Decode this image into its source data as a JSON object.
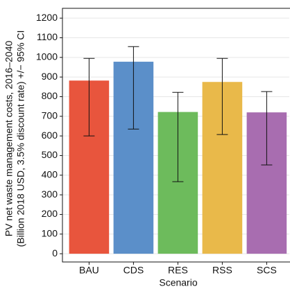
{
  "chart_data": {
    "type": "bar",
    "y_label_lines": [
      "PV net waste management costs, 2016–2040",
      "(Billion 2018 USD, 3.5% discount rate) +/− 95% CI"
    ],
    "x_label": "Scenario",
    "categories": [
      "BAU",
      "CDS",
      "RES",
      "RSS",
      "SCS"
    ],
    "values": [
      882,
      978,
      722,
      875,
      720
    ],
    "ci_low": [
      600,
      635,
      367,
      607,
      452
    ],
    "ci_high": [
      995,
      1055,
      822,
      995,
      826
    ],
    "colors": [
      "#e8553d",
      "#5b8fc9",
      "#6dbb5c",
      "#e9b94a",
      "#a86db0"
    ],
    "ylim": [
      -42,
      1250
    ],
    "yticks": [
      0,
      100,
      200,
      300,
      400,
      500,
      600,
      700,
      800,
      900,
      1000,
      1100,
      1200
    ],
    "grid": true
  }
}
